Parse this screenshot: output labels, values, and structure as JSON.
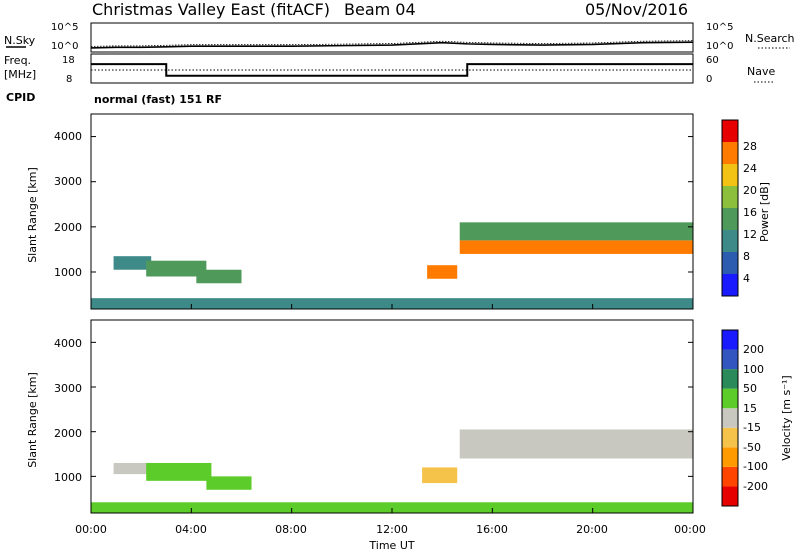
{
  "header": {
    "title": "Christmas Valley East (fitACF)",
    "beam": "Beam 04",
    "date": "05/Nov/2016"
  },
  "left_labels": {
    "nsky": "N.Sky",
    "freq": "Freq.",
    "freq_unit": "[MHz]",
    "cpid": "CPID"
  },
  "right_labels": {
    "nsearch": "N.Search",
    "nave": "Nave"
  },
  "noise_axis": {
    "left": [
      "10^5",
      "10^0"
    ],
    "right": [
      "10^5",
      "10^0"
    ]
  },
  "freq_axis": {
    "left": [
      "18",
      "8"
    ],
    "right": [
      "60",
      "0"
    ]
  },
  "cpid_text": "normal (fast) 151 RF",
  "x_label": "Time UT",
  "x_ticks": [
    "00:00",
    "04:00",
    "08:00",
    "12:00",
    "16:00",
    "20:00",
    "00:00"
  ],
  "y_label": "Slant Range [km]",
  "y_ticks": [
    "1000",
    "2000",
    "3000",
    "4000"
  ],
  "power_colorbar": {
    "label": "Power [dB]",
    "ticks": [
      "4",
      "8",
      "12",
      "16",
      "20",
      "24",
      "28"
    ]
  },
  "velocity_colorbar": {
    "label": "Velocity [m s⁻¹]",
    "ticks": [
      "-200",
      "-100",
      "-50",
      "-15",
      "15",
      "50",
      "100",
      "200"
    ]
  },
  "colors": {
    "power_scale": [
      "#1a1aff",
      "#2b5cb0",
      "#3d8a88",
      "#4f9a5a",
      "#8cbf3c",
      "#f2c215",
      "#ff7b00",
      "#e60000"
    ],
    "velocity_scale": [
      "#e60000",
      "#ff4500",
      "#ff9a00",
      "#f5c24a",
      "#c8c8c0",
      "#5ccc2a",
      "#2a8a5a",
      "#3355c0",
      "#1a1aff"
    ]
  },
  "chart_data": [
    {
      "type": "line",
      "name": "noise",
      "x": [
        0,
        1,
        2,
        3,
        4,
        6,
        8,
        10,
        12,
        14,
        15,
        16,
        18,
        20,
        22,
        24
      ],
      "y": [
        0.7,
        0.8,
        0.8,
        0.9,
        1.0,
        1.0,
        1.0,
        1.1,
        1.2,
        1.6,
        1.4,
        1.3,
        1.2,
        1.3,
        1.6,
        1.7
      ],
      "ylim": [
        0,
        5
      ]
    },
    {
      "type": "line",
      "name": "frequency",
      "x": [
        0,
        3,
        3,
        15,
        15,
        24
      ],
      "y": [
        14.5,
        14.5,
        10.5,
        10.5,
        14.5,
        14.5
      ],
      "ylim": [
        8,
        18
      ]
    },
    {
      "type": "heatmap",
      "name": "power",
      "xlim": [
        0,
        24
      ],
      "ylim": [
        180,
        4500
      ],
      "regions": [
        {
          "t0": 0.9,
          "t1": 2.4,
          "r0": 1050,
          "r1": 1350,
          "v": 10
        },
        {
          "t0": 2.2,
          "t1": 4.6,
          "r0": 900,
          "r1": 1250,
          "v": 14
        },
        {
          "t0": 4.2,
          "t1": 6.0,
          "r0": 750,
          "r1": 1050,
          "v": 12
        },
        {
          "t0": 13.4,
          "t1": 14.6,
          "r0": 850,
          "r1": 1150,
          "v": 26
        },
        {
          "t0": 14.7,
          "t1": 24.0,
          "r0": 1400,
          "r1": 1700,
          "v": 25
        },
        {
          "t0": 14.7,
          "t1": 24.0,
          "r0": 1700,
          "r1": 2100,
          "v": 12
        },
        {
          "t0": 0.0,
          "t1": 24.0,
          "r0": 180,
          "r1": 420,
          "v": 8
        }
      ]
    },
    {
      "type": "heatmap",
      "name": "velocity",
      "xlim": [
        0,
        24
      ],
      "ylim": [
        180,
        4500
      ],
      "regions": [
        {
          "t0": 0.9,
          "t1": 2.4,
          "r0": 1050,
          "r1": 1300,
          "v": 0
        },
        {
          "t0": 2.2,
          "t1": 4.8,
          "r0": 900,
          "r1": 1300,
          "v": 40
        },
        {
          "t0": 4.6,
          "t1": 6.4,
          "r0": 700,
          "r1": 1000,
          "v": 35
        },
        {
          "t0": 13.2,
          "t1": 14.6,
          "r0": 850,
          "r1": 1200,
          "v": -40
        },
        {
          "t0": 14.7,
          "t1": 24.0,
          "r0": 1400,
          "r1": 2050,
          "v": 0
        },
        {
          "t0": 0.0,
          "t1": 24.0,
          "r0": 180,
          "r1": 420,
          "v": 20
        }
      ]
    }
  ]
}
